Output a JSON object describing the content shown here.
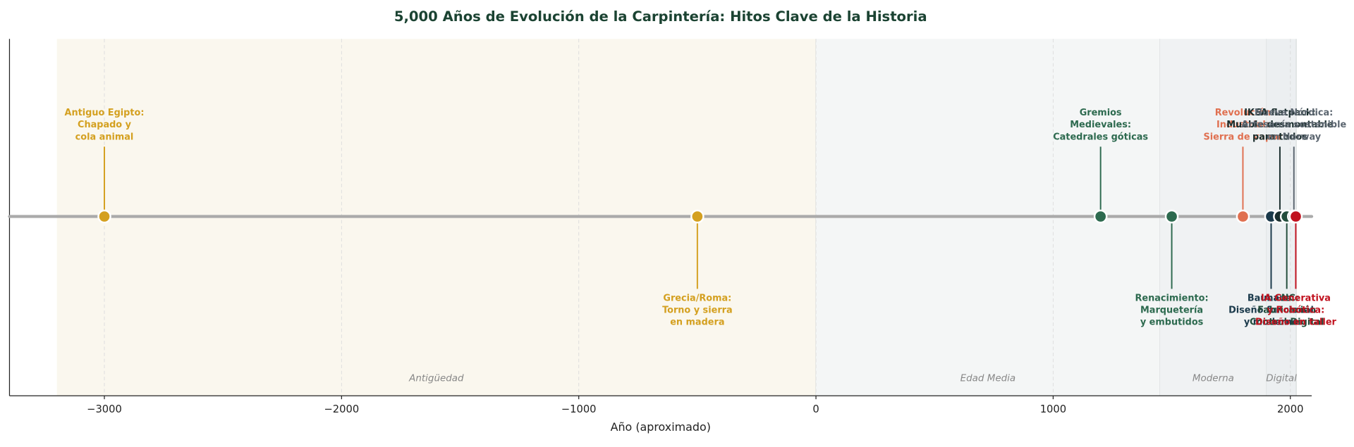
{
  "chart_data": {
    "type": "timeline",
    "title": "5,000 Años de Evolución de la Carpintería: Hitos Clave de la Historia",
    "xlabel": "Año (aproximado)",
    "xlim": [
      -3400,
      2090
    ],
    "xticks": [
      {
        "value": -3000,
        "label": "−3000"
      },
      {
        "value": -2000,
        "label": "−2000"
      },
      {
        "value": -1000,
        "label": "−1000"
      },
      0,
      1000,
      2000
    ],
    "grid": true,
    "eras": [
      {
        "name": "Antigüedad",
        "start": -3200,
        "end": 0,
        "color": "#faf7ee"
      },
      {
        "name": "Edad Media",
        "start": 0,
        "end": 1450,
        "color": "#f4f6f6"
      },
      {
        "name": "Moderna",
        "start": 1450,
        "end": 1900,
        "color": "#f0f2f3"
      },
      {
        "name": "Digital",
        "start": 1900,
        "end": 2025,
        "color": "#eceff1"
      }
    ],
    "events": [
      {
        "year": -3000,
        "label": [
          "Antiguo Egipto:",
          "Chapado y",
          "cola animal"
        ],
        "color": "#d4a020",
        "position": "up"
      },
      {
        "year": -500,
        "label": [
          "Grecia/Roma:",
          "Torno y sierra",
          "en madera"
        ],
        "color": "#d4a020",
        "position": "down"
      },
      {
        "year": 1200,
        "label": [
          "Gremios",
          "Medievales:",
          "Catedrales góticas"
        ],
        "color": "#2d6a4f",
        "position": "up"
      },
      {
        "year": 1500,
        "label": [
          "Renacimiento:",
          "Marquetería",
          "y embutidos"
        ],
        "color": "#2d6a4f",
        "position": "down"
      },
      {
        "year": 1800,
        "label": [
          "Revolución",
          "Industrial:",
          "Sierra de vapor"
        ],
        "color": "#e07050",
        "position": "up"
      },
      {
        "year": 1919,
        "label": [
          "Bauhaus:",
          "Diseño funcional",
          "y moderno"
        ],
        "color": "#1b3a4b",
        "position": "down"
      },
      {
        "year": 1956,
        "label": [
          "IKEA flatpack:",
          "Mueble desmontable",
          "para todos"
        ],
        "color": "#1a2e2e",
        "position": "up"
      },
      {
        "year": 1985,
        "label": [
          "CNC:",
          "Fabricación",
          "Control Digital"
        ],
        "color": "#234d3c",
        "position": "down"
      },
      {
        "year": 2015,
        "label": [
          "Nueva Nórdica:",
          "Artesanía sostenible",
          "en Norway"
        ],
        "color": "#5c6670",
        "position": "up"
      },
      {
        "year": 2023,
        "label": [
          "IA Generativa",
          "y Robótica:",
          "Diseño en taller"
        ],
        "color": "#c1121f",
        "position": "down"
      }
    ]
  }
}
